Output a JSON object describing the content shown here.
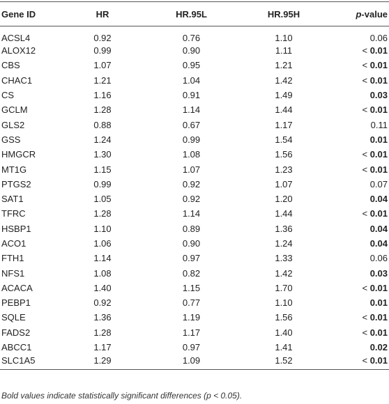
{
  "header": {
    "columns": [
      "Gene ID",
      "HR",
      "HR.95L",
      "HR.95H"
    ],
    "p_column": {
      "italic": "p",
      "rest": "-value"
    }
  },
  "table": {
    "rows": [
      {
        "gene": "ACSL4",
        "hr": "0.92",
        "hr95l": "0.76",
        "hr95h": "1.10",
        "p": {
          "value": "0.06",
          "bold": false
        }
      },
      {
        "gene": "ALOX12",
        "hr": "0.99",
        "hr95l": "0.90",
        "hr95h": "1.11",
        "p": {
          "sign": "<",
          "value": "0.01",
          "bold": true
        }
      },
      {
        "gene": "CBS",
        "hr": "1.07",
        "hr95l": "0.95",
        "hr95h": "1.21",
        "p": {
          "sign": "<",
          "value": "0.01",
          "bold": true
        }
      },
      {
        "gene": "CHAC1",
        "hr": "1.21",
        "hr95l": "1.04",
        "hr95h": "1.42",
        "p": {
          "sign": "<",
          "value": "0.01",
          "bold": true
        }
      },
      {
        "gene": "CS",
        "hr": "1.16",
        "hr95l": "0.91",
        "hr95h": "1.49",
        "p": {
          "value": "0.03",
          "bold": true
        }
      },
      {
        "gene": "GCLM",
        "hr": "1.28",
        "hr95l": "1.14",
        "hr95h": "1.44",
        "p": {
          "sign": "<",
          "value": "0.01",
          "bold": true
        }
      },
      {
        "gene": "GLS2",
        "hr": "0.88",
        "hr95l": "0.67",
        "hr95h": "1.17",
        "p": {
          "value": "0.11",
          "bold": false
        }
      },
      {
        "gene": "GSS",
        "hr": "1.24",
        "hr95l": "0.99",
        "hr95h": "1.54",
        "p": {
          "value": "0.01",
          "bold": true
        }
      },
      {
        "gene": "HMGCR",
        "hr": "1.30",
        "hr95l": "1.08",
        "hr95h": "1.56",
        "p": {
          "sign": "<",
          "value": "0.01",
          "bold": true
        }
      },
      {
        "gene": "MT1G",
        "hr": "1.15",
        "hr95l": "1.07",
        "hr95h": "1.23",
        "p": {
          "sign": "<",
          "value": "0.01",
          "bold": true
        }
      },
      {
        "gene": "PTGS2",
        "hr": "0.99",
        "hr95l": "0.92",
        "hr95h": "1.07",
        "p": {
          "value": "0.07",
          "bold": false
        }
      },
      {
        "gene": "SAT1",
        "hr": "1.05",
        "hr95l": "0.92",
        "hr95h": "1.20",
        "p": {
          "value": "0.04",
          "bold": true
        }
      },
      {
        "gene": "TFRC",
        "hr": "1.28",
        "hr95l": "1.14",
        "hr95h": "1.44",
        "p": {
          "sign": "<",
          "value": "0.01",
          "bold": true
        }
      },
      {
        "gene": "HSBP1",
        "hr": "1.10",
        "hr95l": "0.89",
        "hr95h": "1.36",
        "p": {
          "value": "0.04",
          "bold": true
        }
      },
      {
        "gene": "ACO1",
        "hr": "1.06",
        "hr95l": "0.90",
        "hr95h": "1.24",
        "p": {
          "value": "0.04",
          "bold": true
        }
      },
      {
        "gene": "FTH1",
        "hr": "1.14",
        "hr95l": "0.97",
        "hr95h": "1.33",
        "p": {
          "value": "0.06",
          "bold": false
        }
      },
      {
        "gene": "NFS1",
        "hr": "1.08",
        "hr95l": "0.82",
        "hr95h": "1.42",
        "p": {
          "value": "0.03",
          "bold": true
        }
      },
      {
        "gene": "ACACA",
        "hr": "1.40",
        "hr95l": "1.15",
        "hr95h": "1.70",
        "p": {
          "sign": "<",
          "value": "0.01",
          "bold": true
        }
      },
      {
        "gene": "PEBP1",
        "hr": "0.92",
        "hr95l": "0.77",
        "hr95h": "1.10",
        "p": {
          "value": "0.01",
          "bold": true
        }
      },
      {
        "gene": "SQLE",
        "hr": "1.36",
        "hr95l": "1.19",
        "hr95h": "1.56",
        "p": {
          "sign": "<",
          "value": "0.01",
          "bold": true
        }
      },
      {
        "gene": "FADS2",
        "hr": "1.28",
        "hr95l": "1.17",
        "hr95h": "1.40",
        "p": {
          "sign": "<",
          "value": "0.01",
          "bold": true
        }
      },
      {
        "gene": "ABCC1",
        "hr": "1.17",
        "hr95l": "0.97",
        "hr95h": "1.41",
        "p": {
          "value": "0.02",
          "bold": true
        }
      },
      {
        "gene": "SLC1A5",
        "hr": "1.29",
        "hr95l": "1.09",
        "hr95h": "1.52",
        "p": {
          "sign": "<",
          "value": "0.01",
          "bold": true
        }
      }
    ]
  },
  "footnote": "Bold values indicate statistically significant differences (p < 0.05)."
}
